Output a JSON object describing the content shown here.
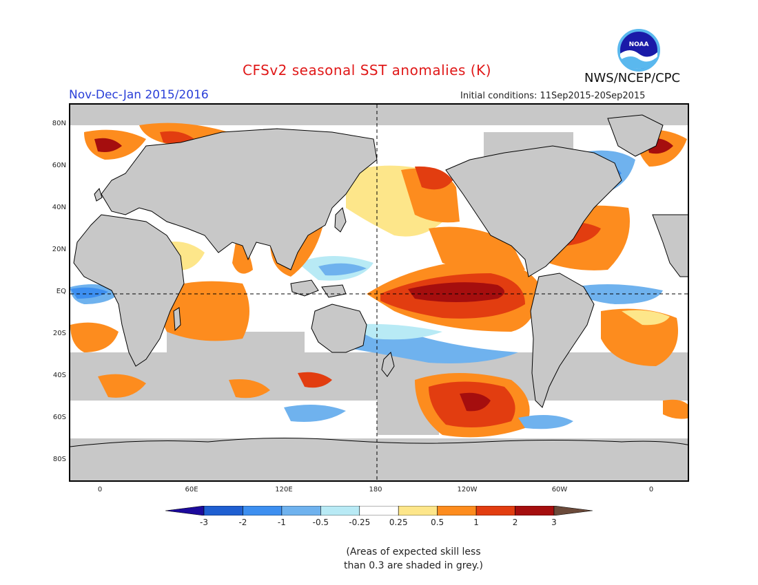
{
  "header": {
    "title": "CFSv2 seasonal SST anomalies (K)",
    "season": "Nov-Dec-Jan 2015/2016",
    "initial_conditions": "Initial conditions: 11Sep2015-20Sep2015",
    "agency": "NWS/NCEP/CPC",
    "logo_text": "NOAA"
  },
  "map": {
    "projection": "cylindrical equidistant",
    "center_longitude": "180",
    "latitude_labels": [
      "80N",
      "60N",
      "40N",
      "20N",
      "EQ",
      "20S",
      "40S",
      "60S",
      "80S"
    ],
    "longitude_labels": [
      "0",
      "60E",
      "120E",
      "180",
      "120W",
      "60W",
      "0"
    ],
    "reference_lines": [
      "equator (dashed)",
      "180 meridian (dashed)"
    ],
    "land_color": "#c8c8c8"
  },
  "legend": {
    "tick_labels": [
      "-3",
      "-2",
      "-1",
      "-0.5",
      "-0.25",
      "0.25",
      "0.5",
      "1",
      "2",
      "3"
    ],
    "colors": [
      "#1c0a9c",
      "#1f5fd1",
      "#3d8ff0",
      "#6fb2ee",
      "#b8eaf5",
      "#ffffff",
      "#fde68a",
      "#fd8c1e",
      "#e23d10",
      "#a50e0e",
      "#6b4a3a"
    ]
  },
  "note": {
    "line1": "(Areas of expected skill less",
    "line2": "than 0.3 are shaded in grey.)"
  }
}
